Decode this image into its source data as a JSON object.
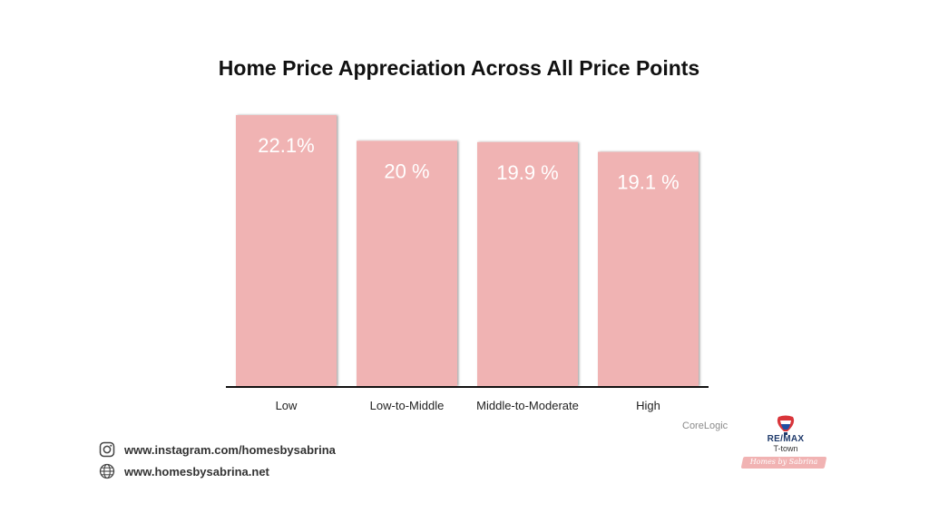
{
  "chart_data": {
    "type": "bar",
    "title": "Home Price Appreciation Across All Price Points",
    "categories": [
      "Low",
      "Low-to-Middle",
      "Middle-to-Moderate",
      "High"
    ],
    "values": [
      22.1,
      20.0,
      19.9,
      19.1
    ],
    "data_labels": [
      "22.1%",
      "20 %",
      "19.9 %",
      "19.1 %"
    ],
    "xlabel": "",
    "ylabel": "",
    "ylim": [
      0,
      22.1
    ],
    "grid": false,
    "bar_color": "#f0b3b3",
    "label_color": "#ffffff",
    "source": "CoreLogic"
  },
  "contacts": {
    "instagram": "www.instagram.com/homesbysabrina",
    "website": "www.homesbysabrina.net"
  },
  "logo": {
    "brand": "RE/MAX",
    "sub": "T-town",
    "script": "Homes by Sabrina"
  }
}
